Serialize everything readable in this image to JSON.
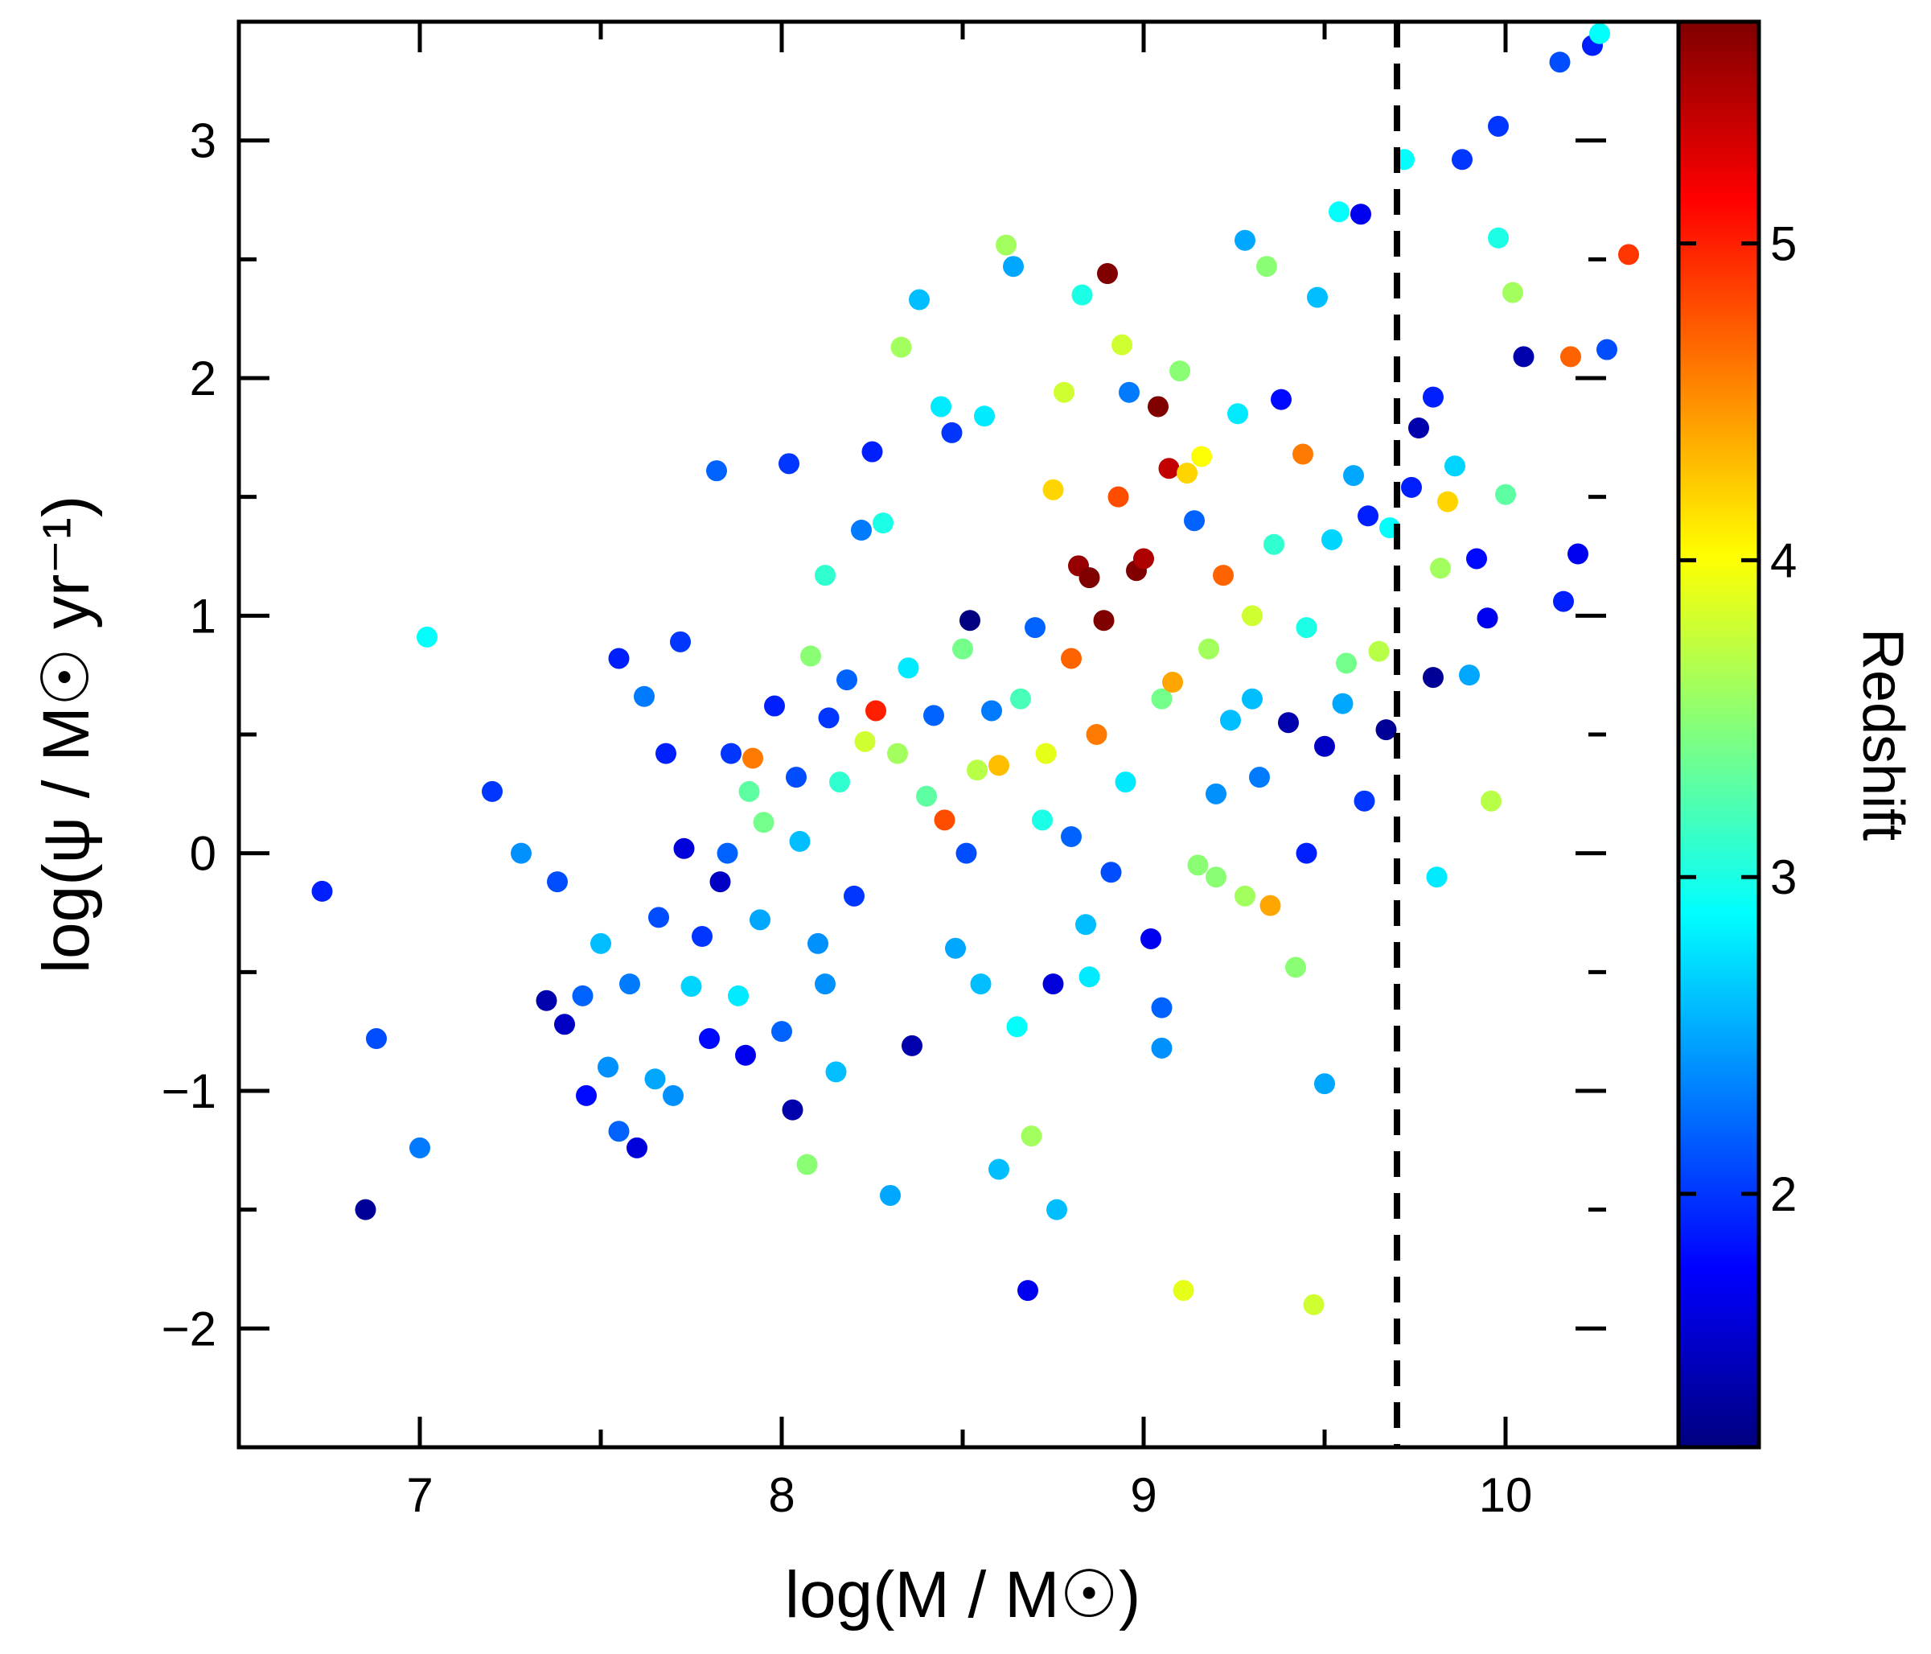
{
  "chart_data": {
    "type": "scatter",
    "title": "",
    "xlabel": "log(M / M☉)",
    "ylabel": "log(ψ / M☉ yr⁻¹)",
    "xlim": [
      6.5,
      10.5
    ],
    "ylim": [
      -2.5,
      3.5
    ],
    "xticks": [
      7,
      8,
      9,
      10
    ],
    "xtick_labels": [
      "7",
      "8",
      "9",
      "10"
    ],
    "yticks": [
      -2,
      -1,
      0,
      1,
      2,
      3
    ],
    "ytick_labels": [
      "−2",
      "−1",
      "0",
      "1",
      "2",
      "3"
    ],
    "vline": {
      "x": 9.7,
      "style": "dashed",
      "color": "#000000"
    },
    "colorbar": {
      "label": "Redshift",
      "colormap": "jet",
      "range": [
        1.2,
        5.7
      ],
      "ticks": [
        2,
        3,
        4,
        5
      ],
      "tick_labels": [
        "2",
        "3",
        "4",
        "5"
      ]
    },
    "grid": false,
    "series_note": "Each galaxy point: x = log stellar mass, y = log SFR, z = redshift (color)",
    "points": [
      [
        6.73,
        -0.16,
        1.9
      ],
      [
        6.85,
        -1.5,
        1.3
      ],
      [
        6.88,
        -0.78,
        2.1
      ],
      [
        7.0,
        -1.24,
        2.3
      ],
      [
        7.02,
        0.91,
        2.9
      ],
      [
        7.2,
        0.26,
        2.0
      ],
      [
        7.28,
        0.0,
        2.4
      ],
      [
        7.35,
        -0.62,
        1.4
      ],
      [
        7.38,
        -0.12,
        2.1
      ],
      [
        7.4,
        -0.72,
        1.5
      ],
      [
        7.45,
        -0.6,
        2.2
      ],
      [
        7.46,
        -1.02,
        1.8
      ],
      [
        7.5,
        -0.38,
        2.6
      ],
      [
        7.52,
        -0.9,
        2.4
      ],
      [
        7.55,
        0.82,
        1.9
      ],
      [
        7.55,
        -1.17,
        2.2
      ],
      [
        7.58,
        -0.55,
        2.3
      ],
      [
        7.6,
        -1.24,
        1.6
      ],
      [
        7.62,
        0.66,
        2.3
      ],
      [
        7.65,
        -0.95,
        2.5
      ],
      [
        7.66,
        -0.27,
        2.1
      ],
      [
        7.68,
        0.42,
        1.9
      ],
      [
        7.7,
        -1.02,
        2.4
      ],
      [
        7.72,
        0.89,
        2.0
      ],
      [
        7.73,
        0.02,
        1.6
      ],
      [
        7.75,
        -0.56,
        2.7
      ],
      [
        7.78,
        -0.35,
        2.0
      ],
      [
        7.8,
        -0.78,
        1.8
      ],
      [
        7.82,
        1.61,
        2.2
      ],
      [
        7.83,
        -0.12,
        1.5
      ],
      [
        7.85,
        0.0,
        2.2
      ],
      [
        7.86,
        0.42,
        2.0
      ],
      [
        7.88,
        -0.6,
        2.8
      ],
      [
        7.9,
        -0.85,
        1.7
      ],
      [
        7.91,
        0.26,
        3.3
      ],
      [
        7.92,
        0.4,
        4.6
      ],
      [
        7.94,
        -0.28,
        2.5
      ],
      [
        7.95,
        0.13,
        3.4
      ],
      [
        7.98,
        0.62,
        1.9
      ],
      [
        8.0,
        -0.75,
        2.2
      ],
      [
        8.02,
        1.64,
        2.0
      ],
      [
        8.03,
        -1.08,
        1.4
      ],
      [
        8.04,
        0.32,
        2.1
      ],
      [
        8.05,
        0.05,
        2.6
      ],
      [
        8.07,
        -1.31,
        3.5
      ],
      [
        8.08,
        0.83,
        3.5
      ],
      [
        8.1,
        -0.38,
        2.4
      ],
      [
        8.12,
        1.17,
        3.1
      ],
      [
        8.13,
        0.57,
        2.0
      ],
      [
        8.15,
        -0.92,
        2.6
      ],
      [
        8.16,
        0.3,
        3.1
      ],
      [
        8.18,
        0.73,
        2.2
      ],
      [
        8.2,
        -0.18,
        2.0
      ],
      [
        8.22,
        1.36,
        2.3
      ],
      [
        8.23,
        0.47,
        3.8
      ],
      [
        8.25,
        1.69,
        1.9
      ],
      [
        8.26,
        0.6,
        5.0
      ],
      [
        8.28,
        1.39,
        3.0
      ],
      [
        8.3,
        -1.44,
        2.5
      ],
      [
        8.32,
        0.42,
        3.6
      ],
      [
        8.33,
        2.13,
        3.6
      ],
      [
        8.35,
        0.78,
        2.8
      ],
      [
        8.36,
        -0.81,
        1.4
      ],
      [
        8.38,
        2.33,
        2.6
      ],
      [
        8.4,
        0.24,
        3.3
      ],
      [
        8.42,
        0.58,
        2.2
      ],
      [
        8.44,
        1.88,
        2.8
      ],
      [
        8.45,
        0.14,
        4.8
      ],
      [
        8.47,
        1.77,
        2.0
      ],
      [
        8.48,
        -0.4,
        2.5
      ],
      [
        8.5,
        0.86,
        3.4
      ],
      [
        8.51,
        0.0,
        2.1
      ],
      [
        8.52,
        0.98,
        1.2
      ],
      [
        8.54,
        0.35,
        3.7
      ],
      [
        8.56,
        1.84,
        2.8
      ],
      [
        8.58,
        0.6,
        2.3
      ],
      [
        8.6,
        0.37,
        4.3
      ],
      [
        8.62,
        2.56,
        3.6
      ],
      [
        8.64,
        2.47,
        2.5
      ],
      [
        8.65,
        -0.73,
        2.9
      ],
      [
        8.66,
        0.65,
        3.2
      ],
      [
        8.68,
        -1.84,
        1.7
      ],
      [
        8.69,
        -1.19,
        3.6
      ],
      [
        8.7,
        0.95,
        2.2
      ],
      [
        8.72,
        0.14,
        3.0
      ],
      [
        8.73,
        0.42,
        3.9
      ],
      [
        8.75,
        1.53,
        4.2
      ],
      [
        8.76,
        -1.5,
        2.6
      ],
      [
        8.78,
        1.94,
        3.8
      ],
      [
        8.8,
        0.82,
        4.7
      ],
      [
        8.8,
        0.07,
        2.2
      ],
      [
        8.82,
        1.21,
        5.6
      ],
      [
        8.83,
        2.35,
        3.0
      ],
      [
        8.84,
        -0.3,
        2.6
      ],
      [
        8.85,
        1.16,
        5.8
      ],
      [
        8.87,
        0.5,
        4.6
      ],
      [
        8.89,
        0.98,
        5.8
      ],
      [
        8.9,
        2.44,
        5.8
      ],
      [
        8.91,
        -0.08,
        2.1
      ],
      [
        8.93,
        1.5,
        4.8
      ],
      [
        8.94,
        2.14,
        3.8
      ],
      [
        8.95,
        0.3,
        2.8
      ],
      [
        8.96,
        1.94,
        2.3
      ],
      [
        8.98,
        1.19,
        5.8
      ],
      [
        9.0,
        1.24,
        5.5
      ],
      [
        9.02,
        -0.36,
        1.7
      ],
      [
        9.04,
        1.88,
        5.8
      ],
      [
        9.05,
        0.65,
        3.4
      ],
      [
        9.07,
        1.62,
        5.4
      ],
      [
        9.08,
        0.72,
        4.4
      ],
      [
        9.1,
        2.03,
        3.5
      ],
      [
        9.11,
        -1.84,
        3.9
      ],
      [
        9.12,
        1.6,
        4.2
      ],
      [
        9.14,
        1.4,
        2.2
      ],
      [
        9.16,
        1.67,
        4.0
      ],
      [
        9.18,
        0.86,
        3.6
      ],
      [
        9.2,
        0.25,
        2.4
      ],
      [
        9.22,
        1.17,
        4.7
      ],
      [
        9.24,
        0.56,
        2.6
      ],
      [
        9.26,
        1.85,
        2.8
      ],
      [
        9.28,
        2.58,
        2.5
      ],
      [
        9.3,
        1.0,
        3.8
      ],
      [
        9.32,
        0.32,
        2.3
      ],
      [
        9.34,
        2.47,
        3.5
      ],
      [
        9.36,
        1.3,
        3.1
      ],
      [
        9.38,
        1.91,
        1.8
      ],
      [
        9.4,
        0.55,
        1.4
      ],
      [
        9.42,
        -0.48,
        3.5
      ],
      [
        9.44,
        1.68,
        4.6
      ],
      [
        9.45,
        0.0,
        1.9
      ],
      [
        9.47,
        -1.9,
        3.8
      ],
      [
        9.48,
        2.34,
        2.6
      ],
      [
        9.5,
        -0.97,
        2.5
      ],
      [
        9.52,
        1.32,
        2.7
      ],
      [
        9.54,
        2.7,
        2.9
      ],
      [
        9.56,
        0.8,
        3.4
      ],
      [
        9.58,
        1.59,
        2.5
      ],
      [
        9.6,
        2.69,
        1.7
      ],
      [
        9.61,
        0.22,
        2.0
      ],
      [
        9.62,
        1.42,
        1.9
      ],
      [
        9.65,
        0.85,
        3.7
      ],
      [
        9.67,
        0.52,
        1.3
      ],
      [
        9.68,
        1.37,
        2.9
      ],
      [
        9.72,
        2.92,
        2.9
      ],
      [
        9.74,
        1.54,
        1.9
      ],
      [
        9.76,
        1.79,
        1.4
      ],
      [
        9.8,
        1.92,
        1.9
      ],
      [
        9.8,
        0.74,
        1.3
      ],
      [
        9.81,
        -0.1,
        2.8
      ],
      [
        9.82,
        1.2,
        3.6
      ],
      [
        9.84,
        1.48,
        4.2
      ],
      [
        9.86,
        1.63,
        2.7
      ],
      [
        9.88,
        2.92,
        2.0
      ],
      [
        9.9,
        0.75,
        2.5
      ],
      [
        9.92,
        1.24,
        1.8
      ],
      [
        9.96,
        0.22,
        3.7
      ],
      [
        9.98,
        2.59,
        3.0
      ],
      [
        9.98,
        3.06,
        2.0
      ],
      [
        10.0,
        1.51,
        3.3
      ],
      [
        10.02,
        2.36,
        3.6
      ],
      [
        10.05,
        2.09,
        1.4
      ],
      [
        10.15,
        3.33,
        2.1
      ],
      [
        10.16,
        1.06,
        1.9
      ],
      [
        10.18,
        2.09,
        4.7
      ],
      [
        10.2,
        1.26,
        1.7
      ],
      [
        10.24,
        3.4,
        1.9
      ],
      [
        10.26,
        3.45,
        2.9
      ],
      [
        10.28,
        2.12,
        2.1
      ],
      [
        10.34,
        2.52,
        4.9
      ],
      [
        9.95,
        0.99,
        1.7
      ],
      [
        9.5,
        0.45,
        1.5
      ],
      [
        9.55,
        0.63,
        2.5
      ],
      [
        9.45,
        0.95,
        3.0
      ],
      [
        9.3,
        0.65,
        2.6
      ],
      [
        9.2,
        -0.1,
        3.5
      ],
      [
        9.05,
        -0.65,
        2.2
      ],
      [
        9.05,
        -0.82,
        2.4
      ],
      [
        9.15,
        -0.05,
        3.5
      ],
      [
        9.28,
        -0.18,
        3.6
      ],
      [
        9.35,
        -0.22,
        4.4
      ],
      [
        8.55,
        -0.55,
        2.6
      ],
      [
        8.6,
        -1.33,
        2.6
      ],
      [
        8.85,
        -0.52,
        2.8
      ],
      [
        8.75,
        -0.55,
        1.6
      ],
      [
        8.12,
        -0.55,
        2.4
      ]
    ]
  }
}
